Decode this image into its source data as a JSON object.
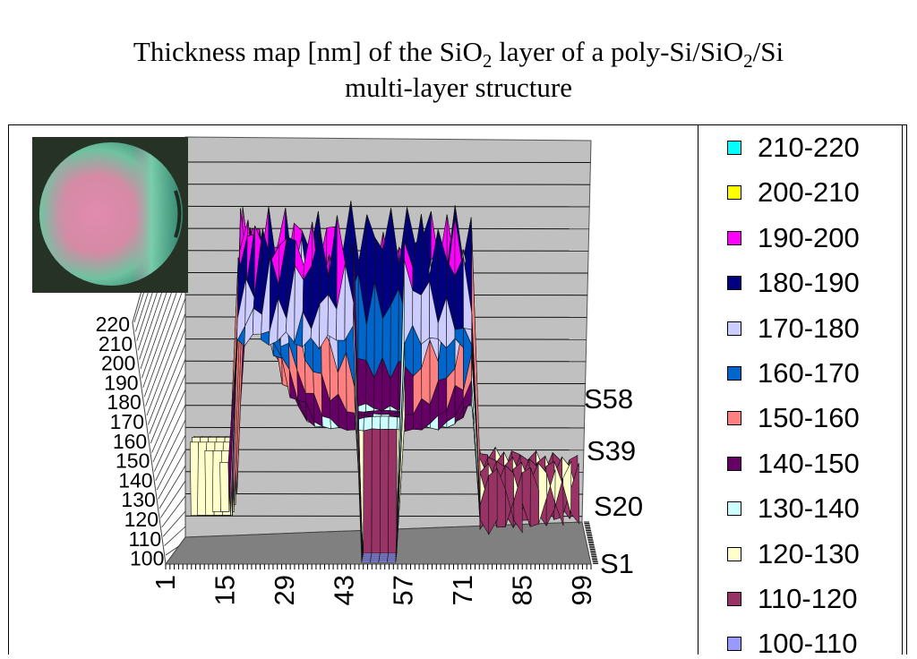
{
  "title": {
    "part1": "Thickness map [nm] of the SiO",
    "sub1": "2",
    "part2": " layer of a poly-Si/SiO",
    "sub2": "2",
    "part3": "/Si",
    "line2": "multi-layer structure"
  },
  "chart_data": {
    "type": "surface-3d",
    "z_ticks": [
      "220",
      "210",
      "200",
      "190",
      "180",
      "170",
      "160",
      "150",
      "140",
      "130",
      "120",
      "110",
      "100"
    ],
    "x_ticks": [
      "1",
      "15",
      "29",
      "43",
      "57",
      "71",
      "85",
      "99"
    ],
    "y_ticks": [
      "S58",
      "S39",
      "S20",
      "S1"
    ],
    "zlim": [
      100,
      220
    ],
    "legend_position": "right",
    "legend": [
      {
        "label": "210-220",
        "color": "#00ffff"
      },
      {
        "label": "200-210",
        "color": "#ffff00"
      },
      {
        "label": "190-200",
        "color": "#ff00ff"
      },
      {
        "label": "180-190",
        "color": "#000080"
      },
      {
        "label": "170-180",
        "color": "#ccccff"
      },
      {
        "label": "160-170",
        "color": "#0066cc"
      },
      {
        "label": "150-160",
        "color": "#ff8080"
      },
      {
        "label": "140-150",
        "color": "#660066"
      },
      {
        "label": "130-140",
        "color": "#ccffff"
      },
      {
        "label": "120-130",
        "color": "#ffffcc"
      },
      {
        "label": "110-120",
        "color": "#993366"
      },
      {
        "label": "100-110",
        "color": "#9999ff"
      }
    ]
  },
  "inset": {
    "icon": "wafer-photo-icon"
  }
}
